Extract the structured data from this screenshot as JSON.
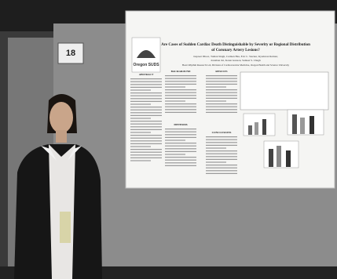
{
  "board_number": "18",
  "poster": {
    "logo": "Oregon SUDS",
    "title_lines": [
      "Are Cases of Sudden Cardiac Death Distinguishable by Severity or Regional Distribution",
      "of Coronary Artery Lesions?"
    ],
    "authors": [
      "Jaspreet Dhoot, Tuman Singh, Carmen Hsu, Eric C. Stecker, Kyndaron Reinier,",
      "Jonathan Jui, Karen Gunson, Sumeet S. Chugh"
    ],
    "affiliation": "Heart Rhythm Research Lab, Division of Cardiovascular Medicine, Oregon Health and Science University",
    "sections": [
      "ABSTRACT",
      "BACKGROUND",
      "METHODS",
      "RESULTS",
      "CONCLUSIONS"
    ]
  }
}
